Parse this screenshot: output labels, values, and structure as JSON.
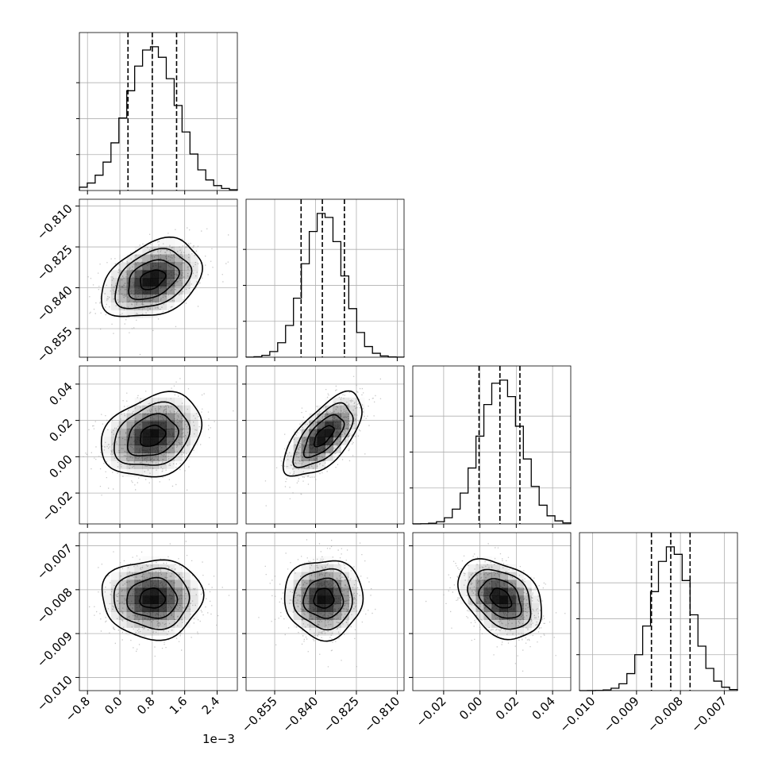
{
  "offset_text": "1e−3",
  "chart_data": {
    "type": "corner",
    "grid": true,
    "colors": {
      "line": "#000000",
      "scatter": "#9a9a9a",
      "grid": "#b0b0b0",
      "density": "#000000"
    },
    "parameters": [
      {
        "ticks": [
          -0.8,
          0.0,
          0.8,
          1.6,
          2.4
        ],
        "tick_labels": [
          "−0.8",
          "0.0",
          "0.8",
          "1.6",
          "2.4"
        ],
        "range": [
          -1.0,
          2.9
        ],
        "scale_note": "1e−3",
        "mean": 0.8,
        "sd": 0.62,
        "quantiles": [
          0.2,
          0.8,
          1.4
        ]
      },
      {
        "ticks": [
          -0.855,
          -0.84,
          -0.825,
          -0.81
        ],
        "tick_labels": [
          "−0.855",
          "−0.840",
          "−0.825",
          "−0.810"
        ],
        "range": [
          -0.8655,
          -0.8075
        ],
        "mean": -0.837,
        "sd": 0.0072,
        "quantiles": [
          -0.8453,
          -0.8375,
          -0.8294
        ]
      },
      {
        "ticks": [
          -0.02,
          0.0,
          0.02,
          0.04
        ],
        "tick_labels": [
          "−0.02",
          "0.00",
          "0.02",
          "0.04"
        ],
        "range": [
          -0.037,
          0.05
        ],
        "mean": 0.0115,
        "sd": 0.0115,
        "quantiles": [
          -0.0005,
          0.011,
          0.022
        ]
      },
      {
        "ticks": [
          -0.01,
          -0.009,
          -0.008,
          -0.007
        ],
        "tick_labels": [
          "−0.010",
          "−0.009",
          "−0.008",
          "−0.007"
        ],
        "range": [
          -0.0103,
          -0.0067
        ],
        "mean": -0.0082,
        "sd": 0.00045,
        "quantiles": [
          -0.00866,
          -0.00822,
          -0.00778
        ]
      }
    ],
    "correlations": [
      {
        "pair": [
          0,
          1
        ],
        "rho": 0.35
      },
      {
        "pair": [
          0,
          2
        ],
        "rho": 0.25
      },
      {
        "pair": [
          1,
          2
        ],
        "rho": 0.65
      },
      {
        "pair": [
          0,
          3
        ],
        "rho": 0.0
      },
      {
        "pair": [
          1,
          3
        ],
        "rho": 0.0
      },
      {
        "pair": [
          2,
          3
        ],
        "rho": -0.35
      }
    ],
    "contour_levels_sigma": [
      0.5,
      1.0,
      1.5,
      2.0
    ],
    "histogram_bins": 20
  }
}
